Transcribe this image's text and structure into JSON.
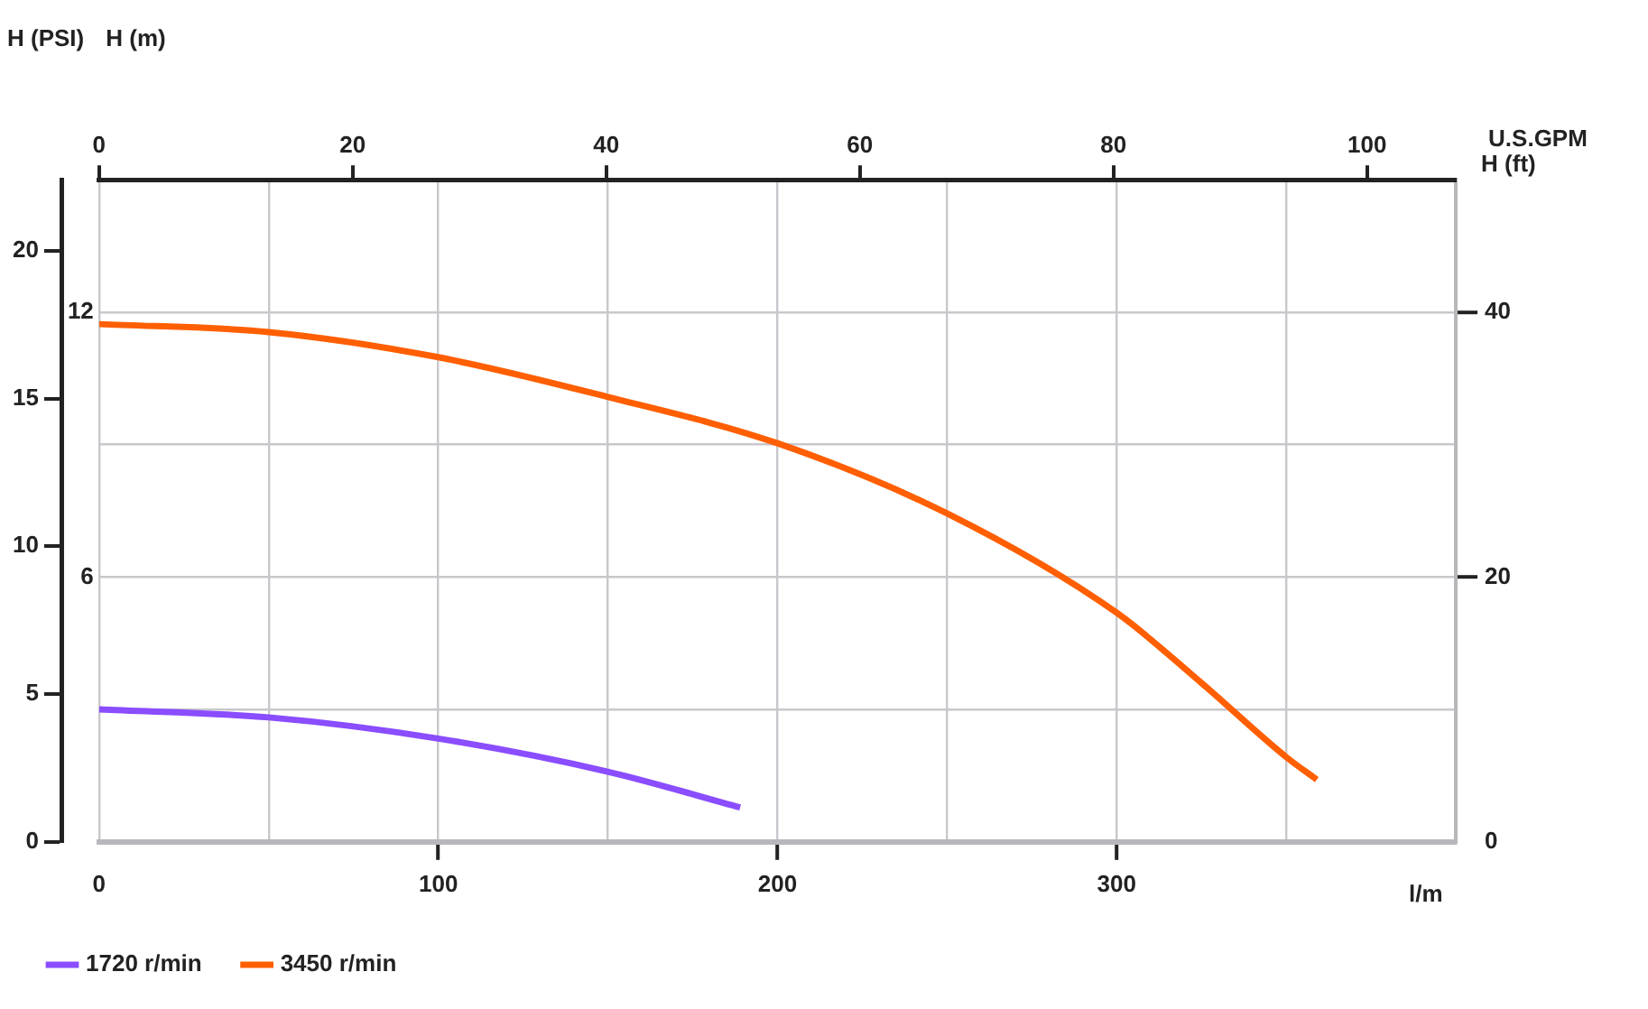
{
  "chart_data": {
    "type": "line",
    "xlabel": "l/m",
    "x2label": "U.S.GPM",
    "ylabel": "H (ft)",
    "y2label": "H (m)",
    "y3label": "H (PSI)",
    "xlim": [
      0,
      400
    ],
    "xticks": [
      0,
      {
        "value": 50,
        "label": null
      },
      100,
      {
        "value": 150,
        "label": null
      },
      200,
      {
        "value": 250,
        "label": null
      },
      300,
      {
        "value": 350,
        "label": null
      },
      {
        "value": 400,
        "label": null
      }
    ],
    "x2lim": [
      0,
      107
    ],
    "x2ticks": [
      0,
      20,
      40,
      60,
      80,
      100
    ],
    "ylim": [
      0,
      50
    ],
    "yticks": [
      0,
      {
        "value": 10,
        "label": null
      },
      20,
      {
        "value": 30,
        "label": null
      },
      40,
      {
        "value": 50,
        "label": null
      }
    ],
    "y2lim": [
      0,
      15
    ],
    "y2ticks": [
      6,
      12
    ],
    "y3lim": [
      0,
      22.4
    ],
    "y3ticks": [
      0,
      5,
      10,
      15,
      20
    ],
    "grid": true,
    "legend": "bottom left",
    "marker": "none",
    "line_style": "solid",
    "series": [
      {
        "name": "1720 r/min",
        "color": "#8a4dff",
        "x": [
          0,
          50,
          100,
          150,
          189
        ],
        "values": [
          10,
          9.4,
          7.8,
          5.3,
          2.6
        ]
      },
      {
        "name": "3450 r/min",
        "color": "#ff5f00",
        "x": [
          0,
          50,
          100,
          150,
          200,
          250,
          300,
          325,
          350,
          359
        ],
        "values": [
          39.1,
          38.5,
          36.6,
          33.6,
          30.1,
          24.8,
          17.3,
          12,
          6.4,
          4.7
        ]
      }
    ]
  }
}
